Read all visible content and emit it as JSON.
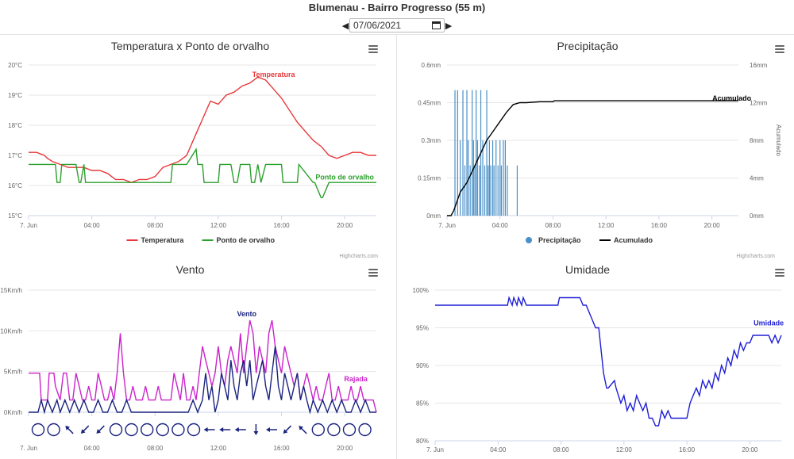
{
  "header": {
    "title": "Blumenau - Bairro Progresso (55 m)",
    "date_value": "07/06/2021"
  },
  "credits": "Highcharts.com",
  "chart_data": [
    {
      "id": "temp",
      "type": "line",
      "title": "Temperatura x Ponto de orvalho",
      "x_ticks": [
        "7. Jun",
        "04:00",
        "08:00",
        "12:00",
        "16:00",
        "20:00"
      ],
      "y_ticks": [
        "15°C",
        "16°C",
        "17°C",
        "18°C",
        "19°C",
        "20°C"
      ],
      "ylim": [
        15,
        20
      ],
      "xlim": [
        0,
        22
      ],
      "legend_position": "bottom",
      "grid": true,
      "series": [
        {
          "name": "Temperatura",
          "color": "#e8383b",
          "x": [
            0,
            0.5,
            1,
            1.2,
            1.5,
            2,
            2.5,
            3,
            3.5,
            4,
            4.5,
            5,
            5.5,
            6,
            6.5,
            7,
            7.5,
            8,
            8.5,
            9,
            9.5,
            10,
            10.5,
            11,
            11.5,
            12,
            12.5,
            13,
            13.5,
            14,
            14.5,
            15,
            15.5,
            16,
            16.5,
            17,
            17.5,
            18,
            18.5,
            19,
            19.5,
            20,
            20.5,
            21,
            21.5,
            22
          ],
          "values": [
            17.1,
            17.1,
            17.0,
            16.9,
            16.8,
            16.7,
            16.6,
            16.6,
            16.6,
            16.5,
            16.5,
            16.4,
            16.2,
            16.2,
            16.1,
            16.2,
            16.2,
            16.3,
            16.6,
            16.7,
            16.8,
            17.0,
            17.6,
            18.2,
            18.8,
            18.7,
            19.0,
            19.1,
            19.3,
            19.4,
            19.6,
            19.5,
            19.2,
            18.9,
            18.5,
            18.1,
            17.8,
            17.5,
            17.3,
            17.0,
            16.9,
            17.0,
            17.1,
            17.1,
            17.0,
            17.0
          ]
        },
        {
          "name": "Ponto de orvalho",
          "color": "#2ca02c",
          "x": [
            0,
            1.7,
            1.8,
            2.0,
            2.1,
            3.0,
            3.2,
            3.3,
            3.5,
            3.6,
            9.0,
            9.1,
            10.0,
            10.6,
            10.7,
            11.0,
            11.1,
            12.0,
            12.1,
            12.8,
            13.0,
            13.2,
            13.4,
            14.0,
            14.1,
            14.3,
            14.5,
            14.7,
            15.0,
            16.0,
            16.1,
            17.0,
            17.1,
            18.0,
            18.1,
            18.5,
            18.6,
            19.0,
            22
          ],
          "values": [
            16.7,
            16.7,
            16.1,
            16.1,
            16.7,
            16.7,
            16.1,
            16.1,
            16.7,
            16.1,
            16.1,
            16.7,
            16.7,
            17.2,
            16.7,
            16.7,
            16.1,
            16.1,
            16.7,
            16.7,
            16.1,
            16.1,
            16.7,
            16.7,
            16.1,
            16.1,
            16.7,
            16.1,
            16.7,
            16.7,
            16.1,
            16.1,
            16.7,
            16.1,
            16.1,
            15.6,
            15.6,
            16.1,
            16.1
          ]
        }
      ],
      "annotations": [
        {
          "label": "Temperatura",
          "x": 15.5,
          "y": 19.6
        },
        {
          "label": "Ponto de orvalho",
          "x": 20.0,
          "y": 16.2
        }
      ]
    },
    {
      "id": "precip",
      "type": "bar+line",
      "title": "Precipitação",
      "x_ticks": [
        "7. Jun",
        "04:00",
        "08:00",
        "12:00",
        "16:00",
        "20:00"
      ],
      "y_ticks": [
        "0mm",
        "0.15mm",
        "0.3mm",
        "0.45mm",
        "0.6mm"
      ],
      "y2_ticks": [
        "0mm",
        "4mm",
        "8mm",
        "12mm",
        "16mm"
      ],
      "y2_label": "Acumulado",
      "ylim": [
        0,
        0.6
      ],
      "y2lim": [
        0,
        16
      ],
      "xlim": [
        0,
        22
      ],
      "legend_position": "bottom",
      "grid": true,
      "series": [
        {
          "name": "Precipitação",
          "color": "#4a90c8",
          "x": [
            0.6,
            0.8,
            1.0,
            1.2,
            1.35,
            1.5,
            1.6,
            1.75,
            1.9,
            2.0,
            2.1,
            2.2,
            2.3,
            2.45,
            2.55,
            2.7,
            2.85,
            3.0,
            3.1,
            3.2,
            3.3,
            3.45,
            3.55,
            3.7,
            3.85,
            4.0,
            4.1,
            4.25,
            4.4,
            4.55,
            5.3
          ],
          "values": [
            0.5,
            0.5,
            0.3,
            0.5,
            0.2,
            0.5,
            0.3,
            0.2,
            0.5,
            0.3,
            0.2,
            0.5,
            0.3,
            0.2,
            0.5,
            0.3,
            0.2,
            0.5,
            0.2,
            0.3,
            0.2,
            0.3,
            0.2,
            0.3,
            0.2,
            0.3,
            0.2,
            0.3,
            0.3,
            0.2,
            0.2
          ]
        },
        {
          "name": "Acumulado",
          "color": "#000000",
          "x": [
            0,
            0.3,
            0.5,
            1.0,
            1.5,
            2.0,
            2.5,
            3.0,
            3.5,
            4.0,
            4.5,
            5.0,
            5.5,
            6.0,
            7.0,
            8.0,
            8.1,
            12,
            16,
            22
          ],
          "values": [
            0,
            0,
            0.5,
            2.5,
            3.5,
            5.0,
            6.5,
            8.0,
            9.0,
            10.0,
            11.0,
            11.8,
            12.0,
            12.0,
            12.1,
            12.1,
            12.2,
            12.2,
            12.2,
            12.2
          ]
        }
      ],
      "annotations": [
        {
          "label": "Acumulado",
          "x": 21.5,
          "y2": 12.2
        }
      ]
    },
    {
      "id": "wind",
      "type": "line",
      "title": "Vento",
      "x_ticks": [
        "7. Jun",
        "04:00",
        "08:00",
        "12:00",
        "16:00",
        "20:00"
      ],
      "y_ticks": [
        "0Km/h",
        "5Km/h",
        "10Km/h",
        "15Km/h"
      ],
      "ylim": [
        0,
        15
      ],
      "xlim": [
        0,
        22
      ],
      "grid": true,
      "series": [
        {
          "name": "Rajada",
          "color": "#cc22cc",
          "x": [
            0,
            0.1,
            0.7,
            0.8,
            1.2,
            1.3,
            1.6,
            1.7,
            2.0,
            2.2,
            2.4,
            2.6,
            2.8,
            3.0,
            3.2,
            3.4,
            3.6,
            3.8,
            4.0,
            4.2,
            4.4,
            4.6,
            4.8,
            5.0,
            5.2,
            5.4,
            5.6,
            5.8,
            6.0,
            6.2,
            6.4,
            6.6,
            6.8,
            7.0,
            7.2,
            7.4,
            7.6,
            7.8,
            8.0,
            8.2,
            8.4,
            8.6,
            8.8,
            9.0,
            9.2,
            9.4,
            9.6,
            9.8,
            10.0,
            10.2,
            10.4,
            10.6,
            10.8,
            11.0,
            11.2,
            11.4,
            11.6,
            11.8,
            12.0,
            12.2,
            12.4,
            12.6,
            12.8,
            13.0,
            13.2,
            13.4,
            13.6,
            13.8,
            14.0,
            14.2,
            14.4,
            14.6,
            14.8,
            15.0,
            15.2,
            15.4,
            15.6,
            15.8,
            16.0,
            16.2,
            16.4,
            16.6,
            16.8,
            17.0,
            17.2,
            17.4,
            17.6,
            17.8,
            18.0,
            18.2,
            18.4,
            18.6,
            18.8,
            19.0,
            19.2,
            19.4,
            19.6,
            19.8,
            20.0,
            20.2,
            20.4,
            20.6,
            20.8,
            21.0,
            21.2,
            21.4,
            21.6,
            21.8,
            22
          ],
          "values": [
            4.8,
            4.8,
            4.8,
            1.5,
            1.5,
            4.8,
            4.8,
            3.2,
            1.5,
            4.8,
            4.8,
            1.5,
            1.5,
            4.8,
            3.2,
            1.5,
            1.5,
            3.2,
            1.5,
            1.5,
            4.8,
            3.2,
            1.5,
            1.5,
            3.2,
            1.5,
            4.8,
            9.7,
            4.8,
            1.5,
            1.5,
            3.2,
            1.5,
            1.5,
            1.5,
            3.2,
            1.5,
            1.5,
            1.5,
            3.2,
            1.5,
            1.5,
            1.5,
            1.5,
            4.8,
            3.2,
            1.5,
            4.8,
            1.5,
            1.5,
            3.2,
            1.5,
            4.8,
            8.1,
            6.4,
            4.8,
            3.2,
            4.8,
            8.1,
            4.8,
            3.2,
            6.4,
            8.1,
            6.4,
            4.8,
            9.7,
            4.8,
            8.1,
            11.3,
            9.7,
            4.8,
            8.1,
            6.4,
            4.8,
            9.7,
            11.3,
            8.1,
            6.4,
            4.8,
            8.1,
            6.4,
            4.8,
            3.2,
            4.8,
            1.5,
            3.2,
            4.8,
            3.2,
            1.5,
            3.2,
            1.5,
            1.5,
            3.2,
            4.8,
            1.5,
            1.5,
            3.2,
            1.5,
            1.5,
            1.5,
            3.2,
            1.5,
            1.5,
            3.2,
            1.5,
            1.5,
            1.5,
            1.5,
            0
          ]
        },
        {
          "name": "Vento",
          "color": "#1a237e",
          "x": [
            0,
            0.6,
            0.8,
            1.0,
            1.2,
            1.5,
            1.8,
            2.0,
            2.3,
            2.6,
            2.9,
            3.2,
            3.5,
            3.8,
            4.1,
            4.4,
            4.7,
            5.0,
            5.3,
            5.6,
            5.9,
            6.2,
            6.5,
            6.8,
            7.1,
            7.4,
            7.7,
            8.0,
            8.3,
            8.6,
            8.9,
            9.2,
            9.5,
            9.8,
            10.1,
            10.4,
            10.7,
            11.0,
            11.2,
            11.4,
            11.6,
            11.8,
            12.0,
            12.2,
            12.4,
            12.6,
            12.8,
            13.0,
            13.2,
            13.4,
            13.6,
            13.8,
            14.0,
            14.2,
            14.4,
            14.6,
            14.8,
            15.0,
            15.2,
            15.4,
            15.6,
            15.8,
            16.0,
            16.2,
            16.4,
            16.6,
            16.8,
            17.0,
            17.2,
            17.4,
            17.6,
            17.8,
            18.0,
            18.3,
            18.6,
            18.9,
            19.2,
            19.5,
            19.8,
            20.1,
            20.4,
            20.7,
            21.0,
            21.3,
            21.6,
            22
          ],
          "values": [
            0,
            0,
            1.5,
            0,
            1.5,
            0,
            1.5,
            0,
            1.5,
            0,
            1.5,
            0,
            1.5,
            0,
            0,
            1.5,
            0,
            0,
            1.5,
            0,
            0,
            1.5,
            0,
            0,
            0,
            0,
            0,
            0,
            0,
            0,
            0,
            0,
            0,
            0,
            0,
            1.5,
            0,
            1.5,
            4.8,
            1.5,
            3.2,
            0,
            1.5,
            4.8,
            3.2,
            1.5,
            6.4,
            3.2,
            1.5,
            4.8,
            6.4,
            3.2,
            6.4,
            1.5,
            3.2,
            4.8,
            6.4,
            3.2,
            1.5,
            4.8,
            8.1,
            3.2,
            1.5,
            4.8,
            3.2,
            1.5,
            3.2,
            4.8,
            1.5,
            3.2,
            1.5,
            0,
            1.5,
            0,
            1.5,
            0,
            1.5,
            0,
            1.5,
            0,
            0,
            1.5,
            0,
            1.5,
            0,
            0
          ]
        }
      ],
      "annotations": [
        {
          "label": "Vento",
          "x": 13.8,
          "y": 11.8
        },
        {
          "label": "Rajada",
          "x": 20.7,
          "y": 3.8
        }
      ],
      "direction_markers": [
        "calm",
        "calm",
        "arrow-nw",
        "arrow-sw",
        "arrow-sw",
        "calm",
        "calm",
        "calm",
        "calm",
        "calm",
        "calm",
        "arrow-w",
        "arrow-w",
        "arrow-w",
        "arrow-s",
        "arrow-w",
        "arrow-sw",
        "arrow-nw",
        "calm",
        "calm",
        "calm",
        "calm"
      ]
    },
    {
      "id": "humid",
      "type": "line",
      "title": "Umidade",
      "x_ticks": [
        "7. Jun",
        "04:00",
        "08:00",
        "12:00",
        "16:00",
        "20:00"
      ],
      "y_ticks": [
        "80%",
        "85%",
        "90%",
        "95%",
        "100%"
      ],
      "ylim": [
        80,
        100
      ],
      "xlim": [
        0,
        22
      ],
      "grid": true,
      "series": [
        {
          "name": "Umidade",
          "color": "#1f1fd6",
          "x": [
            0,
            4.6,
            4.7,
            4.9,
            5.0,
            5.2,
            5.3,
            5.5,
            5.6,
            5.8,
            5.9,
            7.8,
            7.9,
            9.2,
            9.4,
            9.6,
            9.8,
            10.0,
            10.2,
            10.4,
            10.6,
            10.7,
            10.9,
            11.0,
            11.4,
            11.5,
            11.8,
            12.0,
            12.2,
            12.4,
            12.6,
            12.8,
            13.0,
            13.2,
            13.4,
            13.6,
            13.8,
            14.0,
            14.2,
            14.4,
            14.6,
            14.8,
            15.0,
            15.2,
            15.4,
            16.0,
            16.2,
            16.4,
            16.6,
            16.8,
            17.0,
            17.2,
            17.4,
            17.6,
            17.8,
            18.0,
            18.2,
            18.4,
            18.6,
            18.8,
            19.0,
            19.2,
            19.4,
            19.6,
            19.8,
            20.0,
            20.2,
            20.4,
            20.6,
            21.0,
            21.2,
            21.4,
            21.6,
            21.8,
            22
          ],
          "values": [
            98,
            98,
            99,
            98,
            99,
            98,
            99,
            98,
            99,
            98,
            98,
            98,
            99,
            99,
            98,
            98,
            97,
            96,
            95,
            95,
            91,
            89,
            87,
            87,
            88,
            87,
            85,
            86,
            84,
            85,
            84,
            86,
            85,
            84,
            85,
            83,
            83,
            82,
            82,
            84,
            83,
            84,
            83,
            83,
            83,
            83,
            85,
            86,
            87,
            86,
            88,
            87,
            88,
            87,
            89,
            88,
            90,
            89,
            91,
            90,
            92,
            91,
            93,
            92,
            93,
            93,
            94,
            94,
            94,
            94,
            94,
            93,
            94,
            93,
            94
          ]
        }
      ],
      "annotations": [
        {
          "label": "Umidade",
          "x": 21.2,
          "y": 95.3
        }
      ]
    }
  ]
}
